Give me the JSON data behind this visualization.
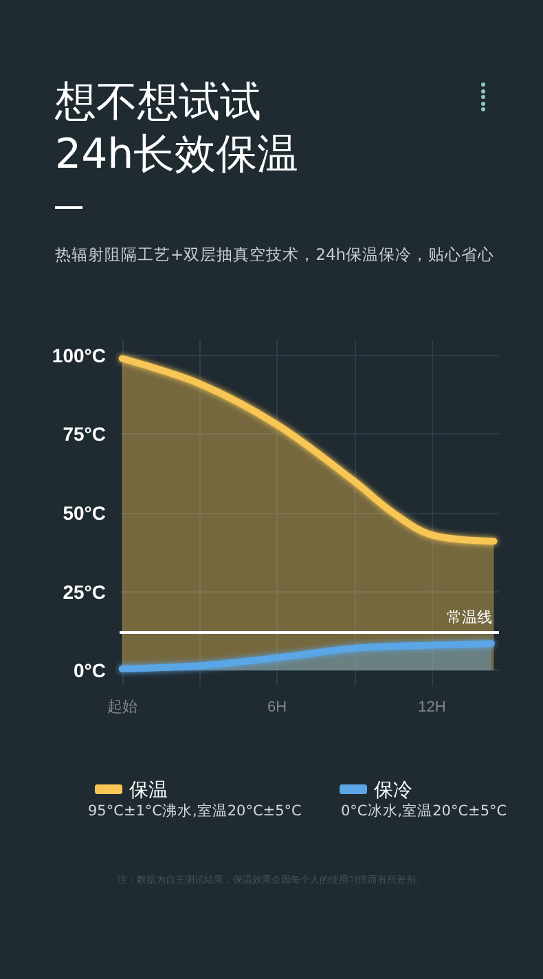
{
  "chart_data": {
    "type": "area",
    "title": "想不想试试\n24h长效保温",
    "subtitle": "热辐射阻隔工艺+双层抽真空技术，24h保温保冷，贴心省心",
    "x": [
      0,
      3,
      6,
      9,
      10.5,
      12,
      14.4
    ],
    "series": [
      {
        "name": "保温",
        "color": "#f8c654",
        "values": [
          99,
          91,
          78,
          60,
          50,
          43,
          41
        ]
      },
      {
        "name": "保冷",
        "color": "#5aa6e6",
        "x": [
          0,
          3,
          6,
          9,
          12,
          14.3
        ],
        "values": [
          0.5,
          1.5,
          4,
          7,
          8,
          8.5
        ]
      }
    ],
    "xlim": [
      -0.1,
      14.6
    ],
    "xticks": [
      {
        "value": 0,
        "label": "起始"
      },
      {
        "value": 3,
        "label": null
      },
      {
        "value": 6,
        "label": "6H"
      },
      {
        "value": 9,
        "label": null
      },
      {
        "value": 12,
        "label": "12H"
      }
    ],
    "ylim": [
      -5,
      105
    ],
    "yticks": [
      {
        "value": 0,
        "label": "0°C"
      },
      {
        "value": 25,
        "label": "25°C"
      },
      {
        "value": 50,
        "label": "50°C"
      },
      {
        "value": 75,
        "label": "75°C"
      },
      {
        "value": 100,
        "label": "100°C"
      }
    ],
    "ref_lines": [
      {
        "axis": "y",
        "value": 12,
        "label": "常温线",
        "color": "#ffffff"
      }
    ],
    "annotations": [
      "95°C±1°C沸水,室温20°C±5°C",
      "0°C冰水,室温20°C±5°C",
      "注：数据为自主测试结果，保温效果会因每个人的使用习惯而有所差别。"
    ],
    "grid": true,
    "legend": "bottom",
    "marker": "none",
    "line_style": "solid"
  }
}
